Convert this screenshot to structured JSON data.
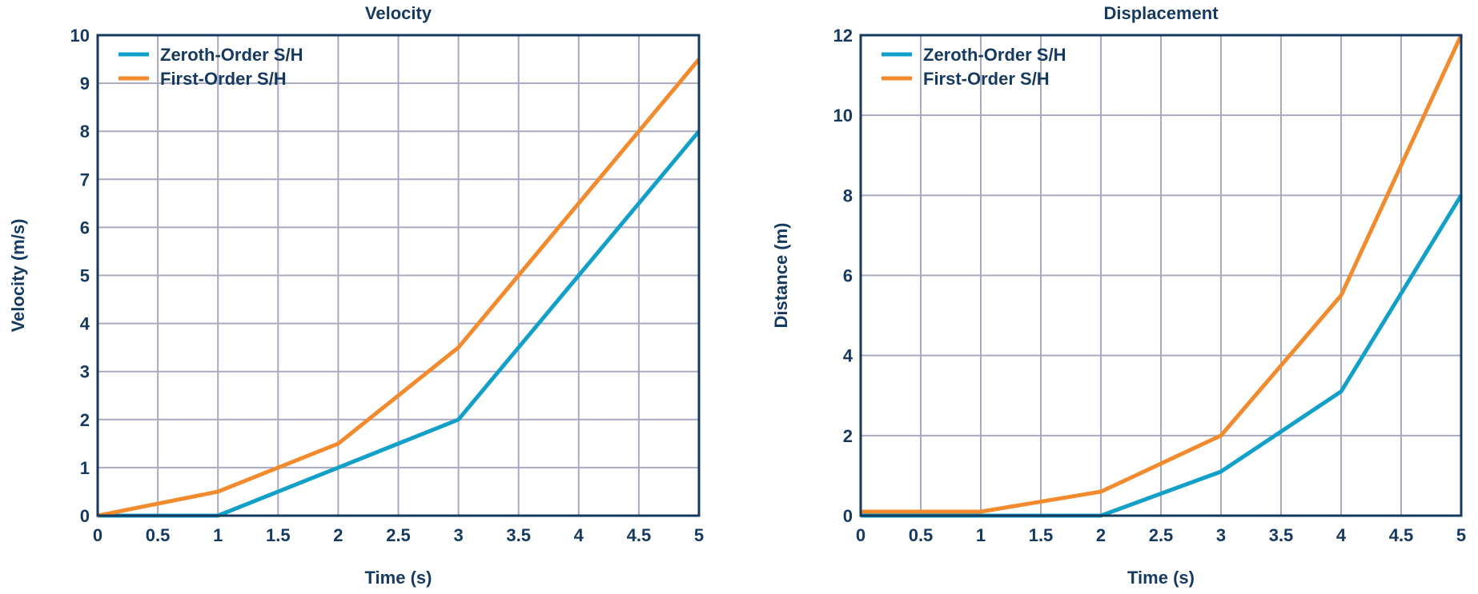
{
  "chart_data": [
    {
      "type": "line",
      "title": "Velocity",
      "xlabel": "Time (s)",
      "ylabel": "Velocity (m/s)",
      "xlim": [
        0,
        5
      ],
      "ylim": [
        0,
        10
      ],
      "xticks": [
        "0",
        "0.5",
        "1",
        "1.5",
        "2",
        "2.5",
        "3",
        "3.5",
        "4",
        "4.5",
        "5"
      ],
      "yticks": [
        "0",
        "1",
        "2",
        "3",
        "4",
        "5",
        "6",
        "7",
        "8",
        "9",
        "10"
      ],
      "grid": true,
      "legend_position": "top-left",
      "series": [
        {
          "name": "Zeroth-Order S/H",
          "color": "#12a0c8",
          "points": [
            [
              0,
              0
            ],
            [
              1,
              0
            ],
            [
              2,
              1
            ],
            [
              3,
              2
            ],
            [
              4,
              5
            ],
            [
              5,
              8
            ]
          ]
        },
        {
          "name": "First-Order S/H",
          "color": "#f28a2e",
          "points": [
            [
              0,
              0
            ],
            [
              1,
              0.5
            ],
            [
              2,
              1.5
            ],
            [
              3,
              3.5
            ],
            [
              4,
              6.5
            ],
            [
              5,
              9.5
            ]
          ]
        }
      ]
    },
    {
      "type": "line",
      "title": "Displacement",
      "xlabel": "Time (s)",
      "ylabel": "Distance (m)",
      "xlim": [
        0,
        5
      ],
      "ylim": [
        0,
        12
      ],
      "xticks": [
        "0",
        "0.5",
        "1",
        "1.5",
        "2",
        "2.5",
        "3",
        "3.5",
        "4",
        "4.5",
        "5"
      ],
      "yticks": [
        "0",
        "2",
        "4",
        "6",
        "8",
        "10",
        "12"
      ],
      "grid": true,
      "legend_position": "top-left",
      "series": [
        {
          "name": "Zeroth-Order S/H",
          "color": "#12a0c8",
          "points": [
            [
              0,
              0
            ],
            [
              1,
              0
            ],
            [
              2,
              0
            ],
            [
              3,
              1.1
            ],
            [
              4,
              3.1
            ],
            [
              5,
              8
            ]
          ]
        },
        {
          "name": "First-Order S/H",
          "color": "#f28a2e",
          "points": [
            [
              0,
              0.1
            ],
            [
              1,
              0.1
            ],
            [
              2,
              0.6
            ],
            [
              3,
              2
            ],
            [
              4,
              5.5
            ],
            [
              5,
              12
            ]
          ]
        }
      ]
    }
  ]
}
